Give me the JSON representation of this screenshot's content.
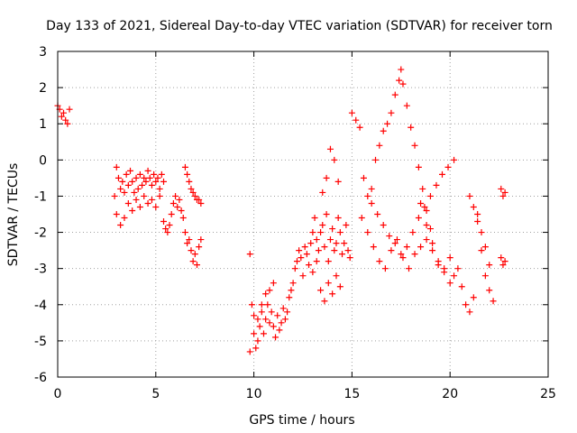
{
  "chart_data": {
    "type": "scatter",
    "title": "Day 133 of 2021, Sidereal Day-to-day VTEC variation (SDTVAR) for receiver torn",
    "xlabel": "GPS time / hours",
    "ylabel": "SDTVAR / TECUs",
    "xlim": [
      0,
      25
    ],
    "ylim": [
      -6,
      3
    ],
    "xticks": [
      "0",
      "5",
      "10",
      "15",
      "20",
      "25"
    ],
    "yticks": [
      "3",
      "2",
      "1",
      "0",
      "-1",
      "-2",
      "-3",
      "-4",
      "-5",
      "-6"
    ],
    "grid": true,
    "marker": "+",
    "color": "#ff0000",
    "series": [
      {
        "name": "SDTVAR",
        "x": [
          0.0,
          0.1,
          0.2,
          0.3,
          0.4,
          0.5,
          0.6,
          2.9,
          3.0,
          3.1,
          3.2,
          3.3,
          3.4,
          3.5,
          3.6,
          3.7,
          3.8,
          3.9,
          4.0,
          4.1,
          4.2,
          4.3,
          4.4,
          4.5,
          4.6,
          4.7,
          4.8,
          4.9,
          5.0,
          5.1,
          5.2,
          5.3,
          5.4,
          3.0,
          3.2,
          3.4,
          3.6,
          3.8,
          4.0,
          4.2,
          4.4,
          4.6,
          4.8,
          5.0,
          5.2,
          5.4,
          5.5,
          5.6,
          5.7,
          5.8,
          5.9,
          6.0,
          6.1,
          6.2,
          6.3,
          6.4,
          6.5,
          6.6,
          6.7,
          6.8,
          6.9,
          7.0,
          7.1,
          7.2,
          7.3,
          6.5,
          6.6,
          6.7,
          6.8,
          6.9,
          7.0,
          7.1,
          7.2,
          7.3,
          9.8,
          9.9,
          10.0,
          10.1,
          10.2,
          10.3,
          10.4,
          10.5,
          10.6,
          10.7,
          10.8,
          10.9,
          11.0,
          11.1,
          11.2,
          11.3,
          11.4,
          11.5,
          11.6,
          11.7,
          11.8,
          11.9,
          12.0,
          9.8,
          10.0,
          10.2,
          10.4,
          10.6,
          10.8,
          11.0,
          12.1,
          12.2,
          12.3,
          12.4,
          12.5,
          12.6,
          12.7,
          12.8,
          12.9,
          13.0,
          13.1,
          13.2,
          13.3,
          13.4,
          13.5,
          13.6,
          13.7,
          13.8,
          13.9,
          14.0,
          14.1,
          14.2,
          14.3,
          14.4,
          14.5,
          14.6,
          14.7,
          14.8,
          14.9,
          13.0,
          13.2,
          13.4,
          13.6,
          13.8,
          14.0,
          14.2,
          14.4,
          13.5,
          13.7,
          13.9,
          14.1,
          14.3,
          15.0,
          15.2,
          15.4,
          15.6,
          15.8,
          16.0,
          16.2,
          16.4,
          16.6,
          16.8,
          17.0,
          17.2,
          17.4,
          17.5,
          17.6,
          17.8,
          18.0,
          18.2,
          18.4,
          18.6,
          18.8,
          19.0,
          15.5,
          15.8,
          16.1,
          16.4,
          16.7,
          17.0,
          17.3,
          17.6,
          17.9,
          18.2,
          18.5,
          18.8,
          19.1,
          19.4,
          19.7,
          20.0,
          16.0,
          16.3,
          16.6,
          16.9,
          17.2,
          17.5,
          17.8,
          18.1,
          18.4,
          18.7,
          19.0,
          19.3,
          19.6,
          19.9,
          20.2,
          18.5,
          18.8,
          19.1,
          19.4,
          19.7,
          20.0,
          20.2,
          20.4,
          20.6,
          20.8,
          21.0,
          21.2,
          21.4,
          21.6,
          21.8,
          22.0,
          22.2,
          21.0,
          21.2,
          21.4,
          21.6,
          21.8,
          22.0,
          22.6,
          22.7,
          22.8,
          22.6,
          22.7,
          22.8
        ],
        "y": [
          1.5,
          1.4,
          1.2,
          1.3,
          1.1,
          1.0,
          1.4,
          -1.0,
          -0.2,
          -0.5,
          -0.8,
          -0.6,
          -0.9,
          -0.4,
          -0.7,
          -0.3,
          -0.6,
          -0.9,
          -0.5,
          -0.8,
          -0.4,
          -0.7,
          -0.5,
          -0.6,
          -0.3,
          -0.5,
          -0.7,
          -0.4,
          -0.6,
          -0.5,
          -0.8,
          -0.4,
          -0.6,
          -1.5,
          -1.8,
          -1.6,
          -1.2,
          -1.4,
          -1.1,
          -1.3,
          -1.0,
          -1.2,
          -1.1,
          -1.3,
          -1.0,
          -1.7,
          -1.9,
          -2.0,
          -1.8,
          -1.5,
          -1.2,
          -1.0,
          -1.3,
          -1.1,
          -1.4,
          -1.6,
          -2.0,
          -2.3,
          -2.2,
          -2.5,
          -2.8,
          -2.6,
          -2.9,
          -2.4,
          -2.2,
          -0.2,
          -0.4,
          -0.6,
          -0.8,
          -0.9,
          -1.0,
          -1.1,
          -1.1,
          -1.2,
          -2.6,
          -4.0,
          -4.3,
          -5.2,
          -5.0,
          -4.6,
          -4.2,
          -4.8,
          -4.4,
          -4.0,
          -4.5,
          -4.2,
          -4.6,
          -4.9,
          -4.3,
          -4.7,
          -4.5,
          -4.1,
          -4.4,
          -4.2,
          -3.8,
          -3.6,
          -3.4,
          -5.3,
          -4.8,
          -4.4,
          -4.0,
          -3.7,
          -3.6,
          -3.4,
          -3.0,
          -2.8,
          -2.5,
          -2.7,
          -3.2,
          -2.4,
          -2.6,
          -2.9,
          -2.3,
          -2.0,
          -1.6,
          -2.2,
          -2.5,
          -2.0,
          -1.8,
          -2.4,
          -1.5,
          -2.8,
          -2.2,
          -1.9,
          -2.5,
          -2.3,
          -1.6,
          -2.0,
          -2.6,
          -2.3,
          -1.8,
          -2.5,
          -2.7,
          -3.1,
          -2.8,
          -3.6,
          -3.9,
          -3.4,
          -3.7,
          -3.2,
          -3.5,
          -0.9,
          -0.5,
          0.3,
          0.0,
          -0.6,
          1.3,
          1.1,
          0.9,
          -0.5,
          -1.0,
          -0.8,
          0.0,
          0.4,
          0.8,
          1.0,
          1.3,
          1.8,
          2.2,
          2.5,
          2.1,
          1.5,
          0.9,
          0.4,
          -0.2,
          -0.8,
          -1.4,
          -1.9,
          -1.6,
          -2.0,
          -2.4,
          -2.8,
          -3.0,
          -2.5,
          -2.2,
          -2.7,
          -3.0,
          -2.6,
          -2.4,
          -2.2,
          -2.5,
          -2.8,
          -3.0,
          -2.7,
          -1.2,
          -1.5,
          -1.8,
          -2.1,
          -2.3,
          -2.6,
          -2.4,
          -2.0,
          -1.6,
          -1.3,
          -1.0,
          -0.7,
          -0.4,
          -0.2,
          0.0,
          -1.2,
          -1.8,
          -2.3,
          -2.9,
          -3.1,
          -3.4,
          -3.2,
          -3.0,
          -3.5,
          -4.0,
          -4.2,
          -3.8,
          -1.5,
          -2.5,
          -3.2,
          -3.6,
          -3.9,
          -1.0,
          -1.3,
          -1.7,
          -2.0,
          -2.4,
          -2.9,
          -0.8,
          -1.0,
          -0.9,
          -2.7,
          -2.9,
          -2.8
        ]
      }
    ]
  }
}
